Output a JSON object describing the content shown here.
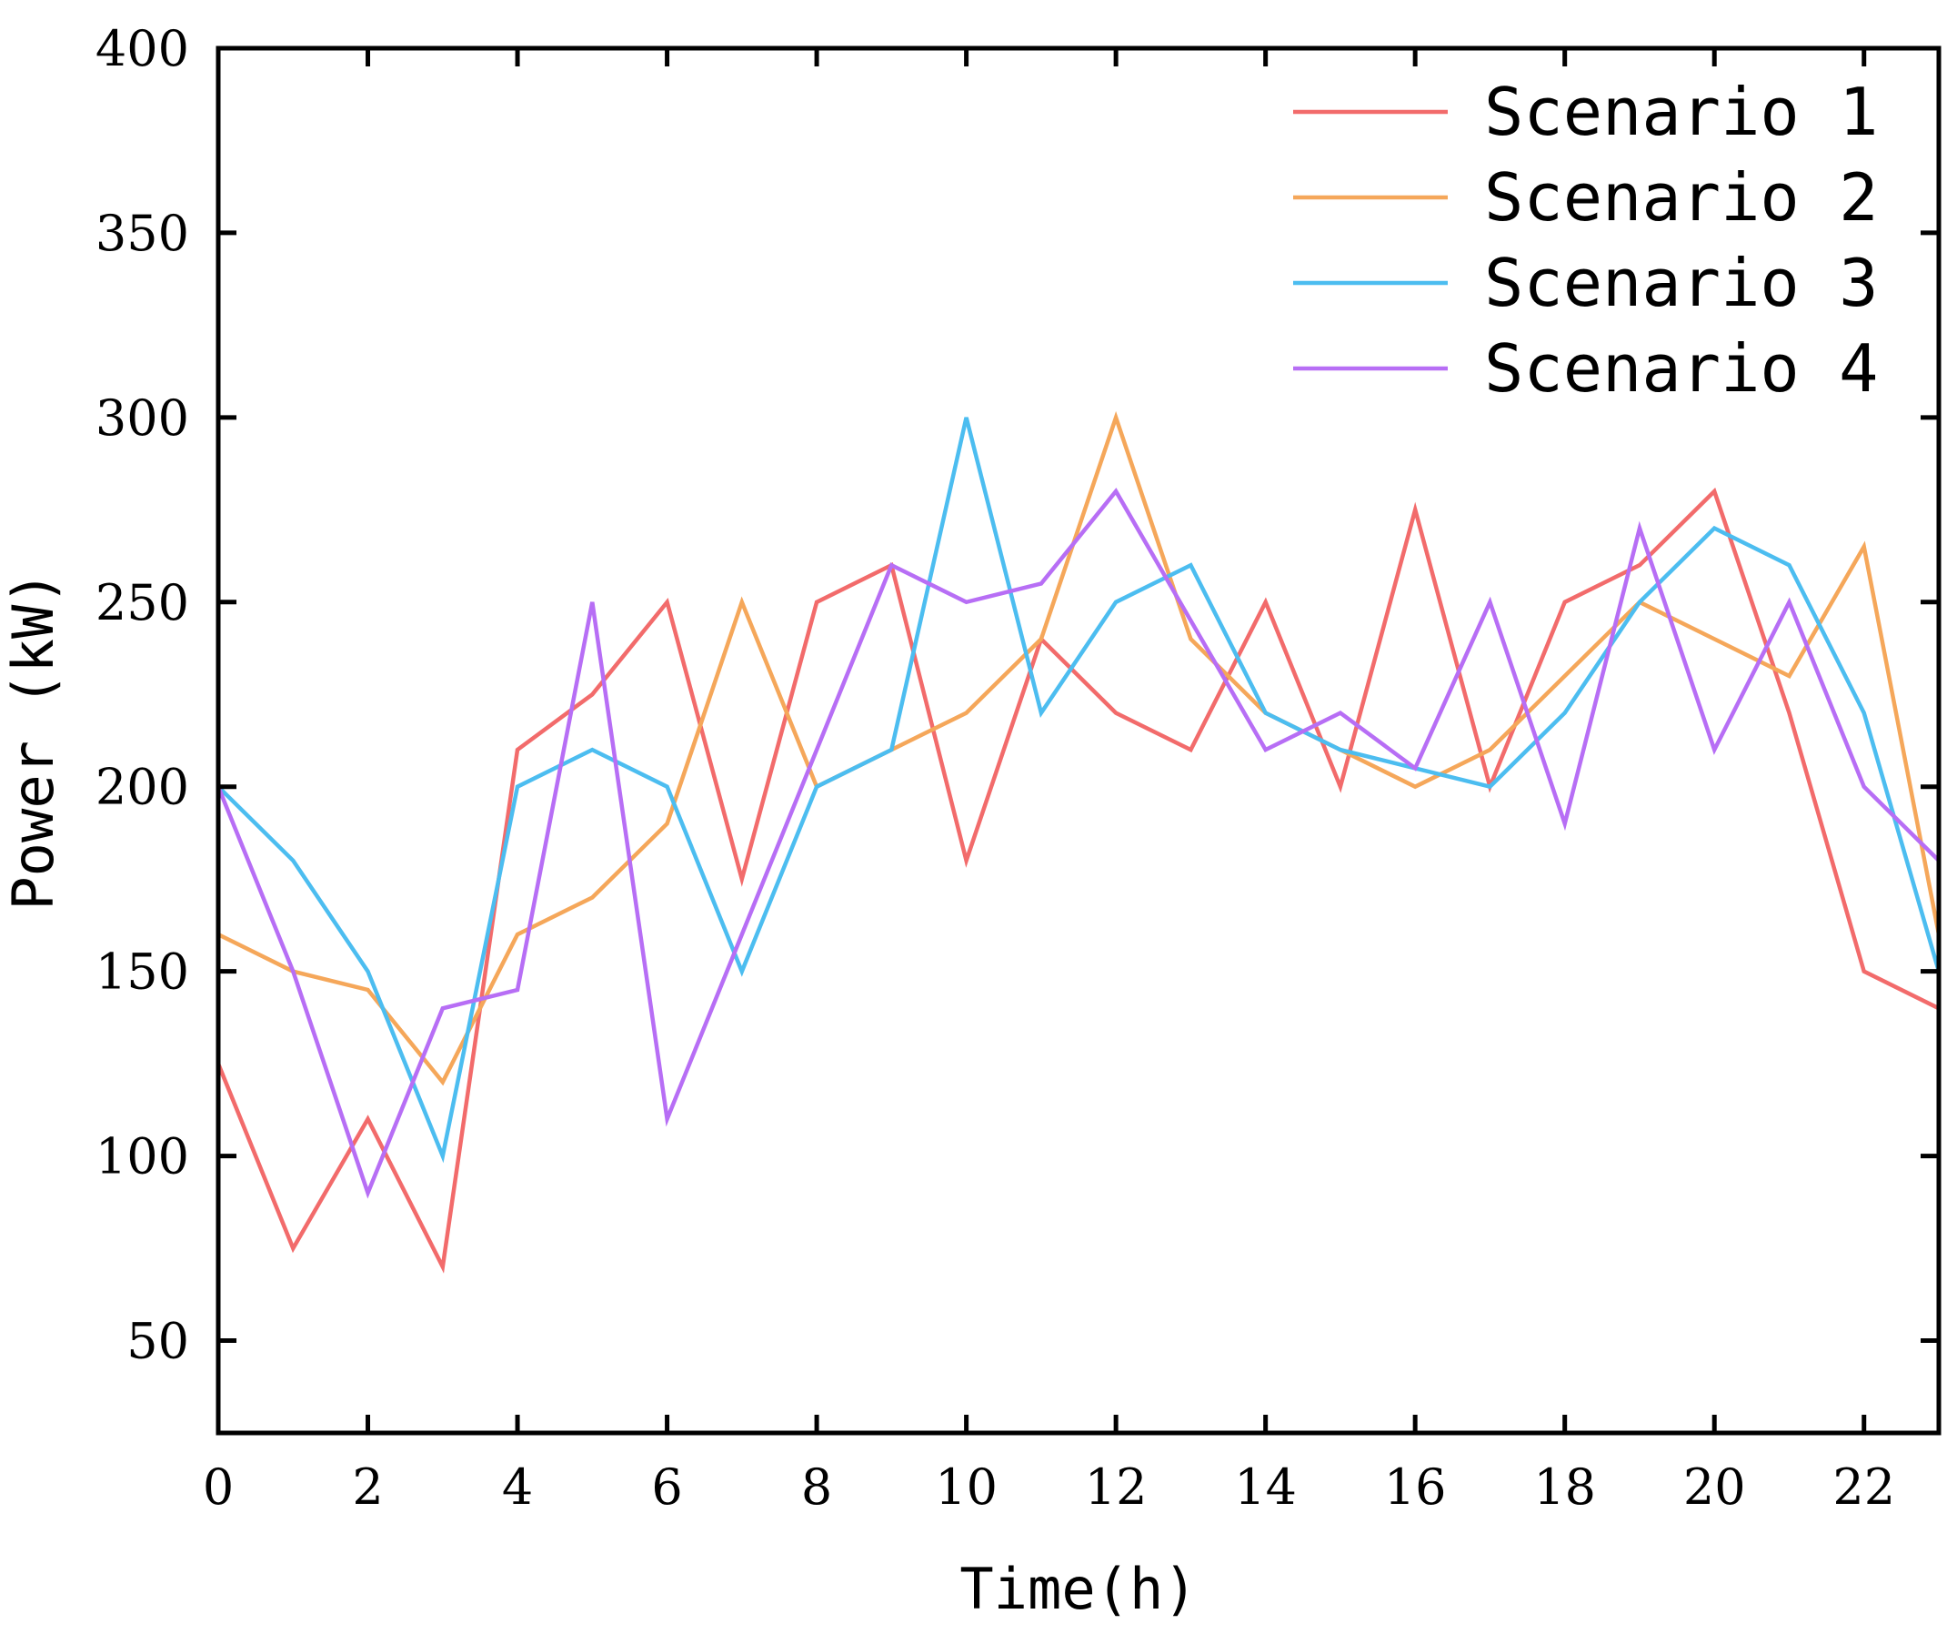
{
  "chart_data": {
    "type": "line",
    "title": "",
    "xlabel": "Time(h)",
    "ylabel": "Power (kW)",
    "xlim": [
      0,
      23
    ],
    "ylim": [
      25,
      400
    ],
    "xticks": [
      0,
      2,
      4,
      6,
      8,
      10,
      12,
      14,
      16,
      18,
      20,
      22
    ],
    "yticks": [
      50,
      100,
      150,
      200,
      250,
      300,
      350,
      400
    ],
    "grid": false,
    "legend_position": "top-right",
    "x": [
      0,
      1,
      2,
      3,
      4,
      5,
      6,
      7,
      8,
      9,
      10,
      11,
      12,
      13,
      14,
      15,
      16,
      17,
      18,
      19,
      20,
      21,
      22,
      23
    ],
    "series": [
      {
        "name": "Scenario 1",
        "color": "#f26b6b",
        "values": [
          125,
          75,
          110,
          70,
          210,
          225,
          250,
          175,
          250,
          260,
          180,
          240,
          220,
          210,
          250,
          200,
          275,
          200,
          250,
          260,
          280,
          220,
          150,
          140
        ]
      },
      {
        "name": "Scenario 2",
        "color": "#f5a75a",
        "values": [
          160,
          150,
          145,
          120,
          160,
          170,
          190,
          250,
          200,
          210,
          220,
          240,
          300,
          240,
          220,
          210,
          200,
          210,
          230,
          250,
          240,
          230,
          265,
          160
        ]
      },
      {
        "name": "Scenario 3",
        "color": "#4cbdf0",
        "values": [
          200,
          180,
          150,
          100,
          200,
          210,
          200,
          150,
          200,
          210,
          300,
          220,
          250,
          260,
          220,
          210,
          205,
          200,
          220,
          250,
          270,
          260,
          220,
          150
        ]
      },
      {
        "name": "Scenario 4",
        "color": "#b76ef5",
        "values": [
          200,
          150,
          90,
          140,
          145,
          250,
          110,
          160,
          210,
          260,
          250,
          255,
          280,
          245,
          210,
          220,
          205,
          250,
          190,
          270,
          210,
          250,
          200,
          180
        ]
      }
    ]
  }
}
